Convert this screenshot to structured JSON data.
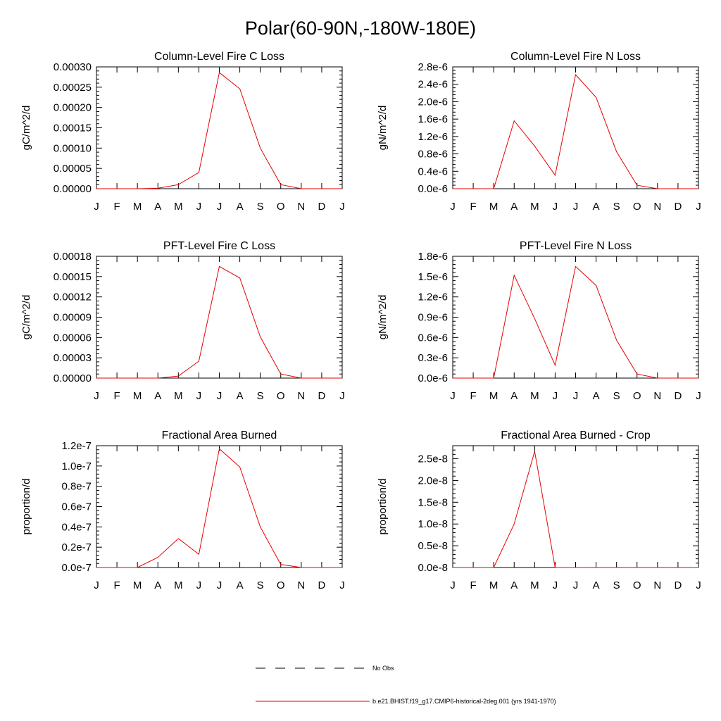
{
  "figure": {
    "title": "Polar(60-90N,-180W-180E)"
  },
  "chart_data": [
    {
      "type": "line",
      "title": "Column-Level Fire C Loss",
      "ylabel": "gC/m^2/d",
      "xlabel": "",
      "x": [
        "J",
        "F",
        "M",
        "A",
        "M",
        "J",
        "J",
        "A",
        "S",
        "O",
        "N",
        "D",
        "J"
      ],
      "yticks": [
        "0.00000",
        "0.00005",
        "0.00010",
        "0.00015",
        "0.00020",
        "0.00025",
        "0.00030"
      ],
      "ylim": [
        0,
        0.0003
      ],
      "series": [
        {
          "color": "#e60000",
          "values": [
            0,
            0,
            0,
            1e-06,
            1e-05,
            4e-05,
            0.000286,
            0.000246,
            0.0001,
            1e-05,
            0,
            0,
            0
          ]
        }
      ]
    },
    {
      "type": "line",
      "title": "Column-Level Fire N Loss",
      "ylabel": "gN/m^2/d",
      "xlabel": "",
      "x": [
        "J",
        "F",
        "M",
        "A",
        "M",
        "J",
        "J",
        "A",
        "S",
        "O",
        "N",
        "D",
        "J"
      ],
      "yticks": [
        "0.0e-6",
        "0.4e-6",
        "0.8e-6",
        "1.2e-6",
        "1.6e-6",
        "2.0e-6",
        "2.4e-6",
        "2.8e-6"
      ],
      "ylim": [
        0,
        2.8
      ],
      "series": [
        {
          "color": "#e60000",
          "values": [
            0,
            0,
            0,
            1.56,
            0.98,
            0.31,
            2.62,
            2.1,
            0.85,
            0.08,
            0,
            0,
            0
          ]
        }
      ]
    },
    {
      "type": "line",
      "title": "PFT-Level Fire C Loss",
      "ylabel": "gC/m^2/d",
      "xlabel": "",
      "x": [
        "J",
        "F",
        "M",
        "A",
        "M",
        "J",
        "J",
        "A",
        "S",
        "O",
        "N",
        "D",
        "J"
      ],
      "yticks": [
        "0.00000",
        "0.00003",
        "0.00006",
        "0.00009",
        "0.00012",
        "0.00015",
        "0.00018"
      ],
      "ylim": [
        0,
        0.00018
      ],
      "series": [
        {
          "color": "#e60000",
          "values": [
            0,
            0,
            0,
            0,
            3e-06,
            2.5e-05,
            0.000165,
            0.000148,
            6.1e-05,
            6e-06,
            0,
            0,
            0
          ]
        }
      ]
    },
    {
      "type": "line",
      "title": "PFT-Level Fire N Loss",
      "ylabel": "gN/m^2/d",
      "xlabel": "",
      "x": [
        "J",
        "F",
        "M",
        "A",
        "M",
        "J",
        "J",
        "A",
        "S",
        "O",
        "N",
        "D",
        "J"
      ],
      "yticks": [
        "0.0e-6",
        "0.3e-6",
        "0.6e-6",
        "0.9e-6",
        "1.2e-6",
        "1.5e-6",
        "1.8e-6"
      ],
      "ylim": [
        0,
        1.8
      ],
      "series": [
        {
          "color": "#e60000",
          "values": [
            0,
            0,
            0,
            1.52,
            0.88,
            0.19,
            1.65,
            1.37,
            0.56,
            0.06,
            0,
            0,
            0
          ]
        }
      ]
    },
    {
      "type": "line",
      "title": "Fractional Area Burned",
      "ylabel": "proportion/d",
      "xlabel": "",
      "x": [
        "J",
        "F",
        "M",
        "A",
        "M",
        "J",
        "J",
        "A",
        "S",
        "O",
        "N",
        "D",
        "J"
      ],
      "yticks": [
        "0.0e-7",
        "0.2e-7",
        "0.4e-7",
        "0.6e-7",
        "0.8e-7",
        "1.0e-7",
        "1.2e-7"
      ],
      "ylim": [
        0,
        1.2
      ],
      "series": [
        {
          "color": "#e60000",
          "values": [
            0,
            0,
            0,
            0.1,
            0.285,
            0.13,
            1.17,
            0.99,
            0.4,
            0.03,
            0,
            0,
            0
          ]
        }
      ]
    },
    {
      "type": "line",
      "title": "Fractional Area Burned - Crop",
      "ylabel": "proportion/d",
      "xlabel": "",
      "x": [
        "J",
        "F",
        "M",
        "A",
        "M",
        "J",
        "J",
        "A",
        "S",
        "O",
        "N",
        "D",
        "J"
      ],
      "yticks": [
        "0.0e-8",
        "0.5e-8",
        "1.0e-8",
        "1.5e-8",
        "2.0e-8",
        "2.5e-8"
      ],
      "ylim": [
        0,
        2.8
      ],
      "series": [
        {
          "color": "#e60000",
          "values": [
            0,
            0,
            0,
            1.0,
            2.67,
            0,
            0,
            0,
            0,
            0,
            0,
            0,
            0
          ]
        }
      ]
    }
  ],
  "legend": {
    "items": [
      {
        "label": "No Obs",
        "style": "dashed",
        "color": "#000000"
      },
      {
        "label": "b.e21.BHIST.f19_g17.CMIP6-historical-2deg.001 (yrs 1941-1970)",
        "style": "solid",
        "color": "#e60000"
      }
    ]
  }
}
